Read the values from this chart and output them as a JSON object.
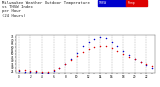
{
  "title": "Milwaukee Weather Outdoor Temperature\nvs THSW Index\nper Hour\n(24 Hours)",
  "title_fontsize": 2.8,
  "background_color": "#ffffff",
  "plot_bg_color": "#ffffff",
  "grid_color": "#888888",
  "hours": [
    0,
    1,
    2,
    3,
    4,
    5,
    6,
    7,
    8,
    9,
    10,
    11,
    12,
    13,
    14,
    15,
    16,
    17,
    18,
    19,
    20,
    21,
    22,
    23
  ],
  "temp": [
    27,
    26,
    25,
    25,
    24,
    24,
    27,
    30,
    35,
    41,
    47,
    53,
    57,
    60,
    62,
    61,
    58,
    55,
    50,
    46,
    42,
    38,
    35,
    32
  ],
  "thsw": [
    25,
    24,
    23,
    23,
    22,
    22,
    25,
    29,
    35,
    43,
    52,
    61,
    67,
    72,
    75,
    73,
    68,
    62,
    54,
    48,
    43,
    38,
    34,
    30
  ],
  "temp_color": "#dd0000",
  "thsw_color": "#0000cc",
  "marker_size": 1.2,
  "ylim": [
    22,
    78
  ],
  "ytick_vals": [
    25,
    30,
    35,
    40,
    45,
    50,
    55,
    60,
    65,
    70,
    75
  ],
  "xtick_labels": [
    "0",
    "",
    "2",
    "",
    "4",
    "",
    "6",
    "",
    "8",
    "",
    "10",
    "",
    "12",
    "",
    "14",
    "",
    "16",
    "",
    "18",
    "",
    "20",
    "",
    "22",
    ""
  ],
  "legend_thsw_label": "THSW",
  "legend_temp_label": "Temp"
}
